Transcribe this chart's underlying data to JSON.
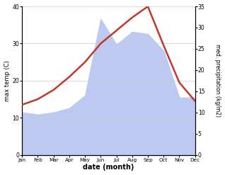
{
  "months": [
    "Jan",
    "Feb",
    "Mar",
    "Apr",
    "May",
    "Jun",
    "Jul",
    "Aug",
    "Sep",
    "Oct",
    "Nov",
    "Dec"
  ],
  "max_temp": [
    13.5,
    15.0,
    17.5,
    21.0,
    25.0,
    30.0,
    33.5,
    37.0,
    40.0,
    29.5,
    19.5,
    14.5
  ],
  "precipitation": [
    10.0,
    9.5,
    10.0,
    11.0,
    14.0,
    32.0,
    26.0,
    29.0,
    28.5,
    24.5,
    13.5,
    13.5
  ],
  "temp_color": "#c0392b",
  "precip_fill_color": "#bdc9f0",
  "temp_ylim": [
    0,
    40
  ],
  "precip_ylim": [
    0,
    35
  ],
  "temp_yticks": [
    0,
    10,
    20,
    30,
    40
  ],
  "precip_yticks": [
    0,
    5,
    10,
    15,
    20,
    25,
    30,
    35
  ],
  "xlabel": "date (month)",
  "ylabel_left": "max temp (C)",
  "ylabel_right": "med. precipitation (kg/m2)",
  "background_color": "#ffffff",
  "line_width": 1.8
}
